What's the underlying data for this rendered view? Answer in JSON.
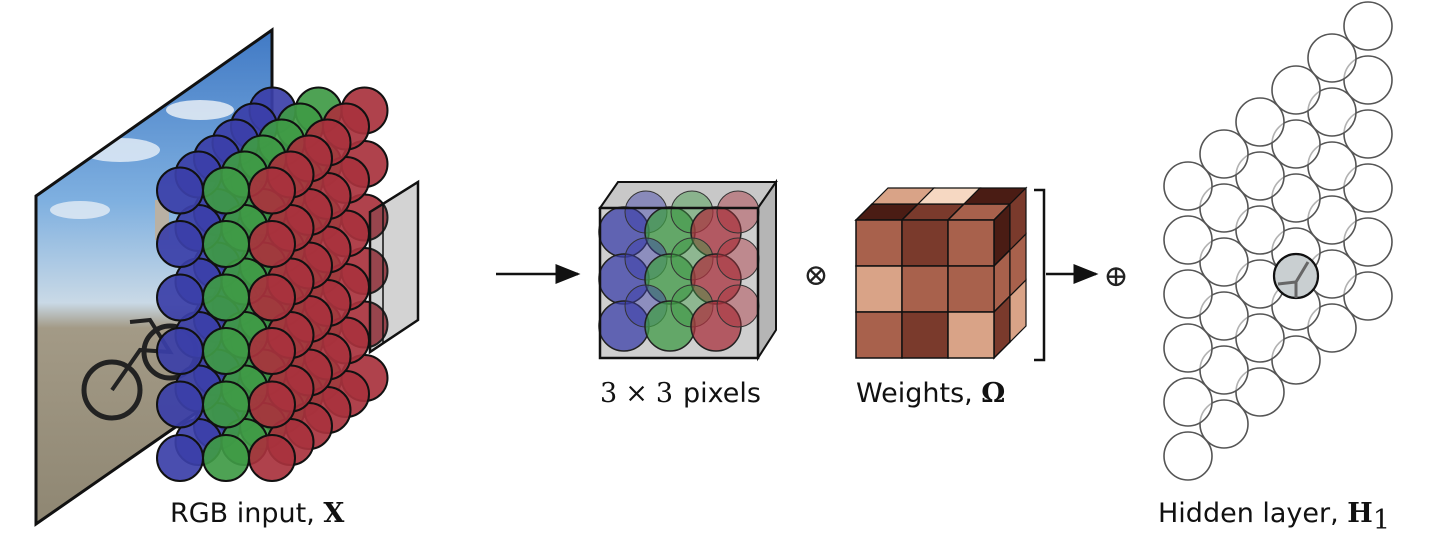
{
  "labels": {
    "input_text": "RGB input, ",
    "input_symbol": "X",
    "patch_base": "3",
    "patch_times": "×",
    "patch_exp": "3",
    "patch_unit": "pixels",
    "weights_text": "Weights, ",
    "weights_symbol": "Ω",
    "hidden_text": "Hidden layer, ",
    "hidden_symbol": "H",
    "hidden_subscript": "1"
  },
  "operators": {
    "multiply": "⊗",
    "add": "⊕"
  },
  "colors": {
    "blue_channel": "#3b3fa8",
    "green_channel": "#3f9a45",
    "red_channel": "#a8323d",
    "hidden_node_active": "#c9cfd1",
    "weight_shades": [
      "#4a1c14",
      "#7a3a2c",
      "#a8614c",
      "#d9a387",
      "#f6d8c2"
    ]
  },
  "grids": {
    "input_rows": 6,
    "input_cols": 6,
    "patch_size": 3,
    "hidden_rows": 6,
    "hidden_cols": 6
  }
}
